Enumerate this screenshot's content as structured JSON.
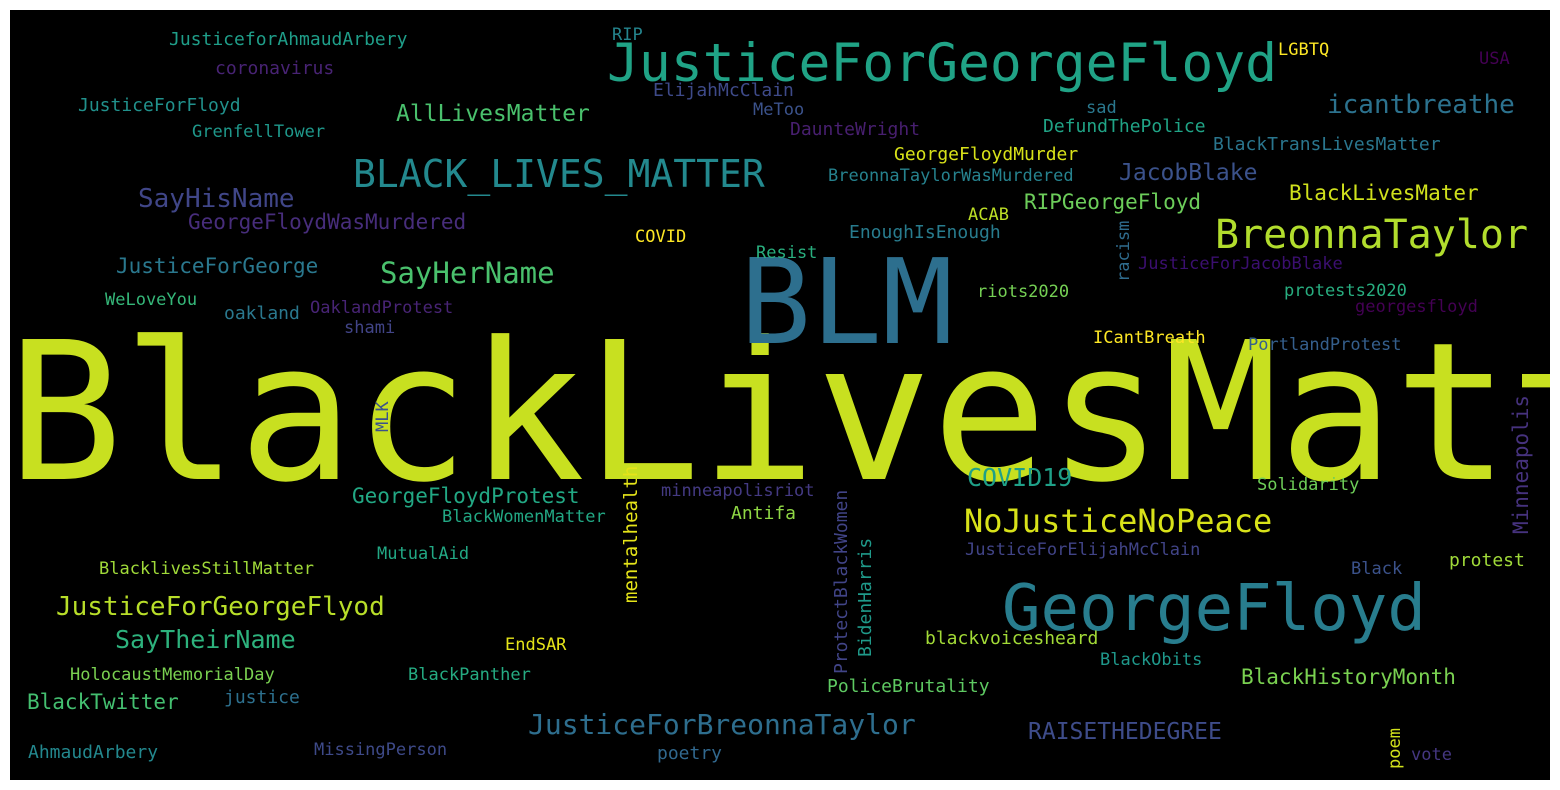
{
  "words": [
    {
      "text": "BlackLivesMatter",
      "color": "#c8e020"
    },
    {
      "text": "BLM",
      "color": "#2d6f8e"
    },
    {
      "text": "JusticeForGeorgeFloyd",
      "color": "#20a386"
    },
    {
      "text": "GeorgeFloyd",
      "color": "#287d8e"
    },
    {
      "text": "BLACK_LIVES_MATTER",
      "color": "#23898e"
    },
    {
      "text": "BreonnaTaylor",
      "color": "#b2dd2d"
    },
    {
      "text": "NoJusticeNoPeace",
      "color": "#d8e219"
    },
    {
      "text": "JusticeForBreonnaTaylor",
      "color": "#2e6e8e"
    },
    {
      "text": "icantbreathe",
      "color": "#2c728e"
    },
    {
      "text": "SayHerName",
      "color": "#4ac16d"
    },
    {
      "text": "JusticeForGeorgeFlyod",
      "color": "#b8de29"
    },
    {
      "text": "SayHisName",
      "color": "#404688"
    },
    {
      "text": "SayTheirName",
      "color": "#2db27d"
    },
    {
      "text": "COVID19",
      "color": "#1fa088"
    },
    {
      "text": "AllLivesMatter",
      "color": "#4ac16d"
    },
    {
      "text": "GeorgeFloydProtest",
      "color": "#22a884"
    },
    {
      "text": "JusticeForGeorge",
      "color": "#2a788e"
    },
    {
      "text": "BlackLivesMater",
      "color": "#d0e11c"
    },
    {
      "text": "JacobBlake",
      "color": "#3b528b"
    },
    {
      "text": "RIPGeorgeFloyd",
      "color": "#6ccd5a"
    },
    {
      "text": "RAISETHEDEGREE",
      "color": "#3e4c8a"
    },
    {
      "text": "BlackHistoryMonth",
      "color": "#7ad151"
    },
    {
      "text": "BlackTwitter",
      "color": "#44bf70"
    },
    {
      "text": "GeorgeFloydWasMurdered",
      "color": "#472d7b"
    },
    {
      "text": "Minneapolis",
      "color": "#46327e"
    },
    {
      "text": "mentalhealth",
      "color": "#e5e419"
    },
    {
      "text": "ProtectBlackWomen",
      "color": "#414487"
    },
    {
      "text": "BidenHarris",
      "color": "#1f9a8a"
    },
    {
      "text": "JusticeforAhmaudArbery",
      "color": "#1f9e89"
    },
    {
      "text": "coronavirus",
      "color": "#482374"
    },
    {
      "text": "JusticeForFloyd",
      "color": "#21918c"
    },
    {
      "text": "GrenfellTower",
      "color": "#1f988b"
    },
    {
      "text": "RIP",
      "color": "#25858e"
    },
    {
      "text": "LGBTQ",
      "color": "#fde725"
    },
    {
      "text": "USA",
      "color": "#440154"
    },
    {
      "text": "ElijahMcClain",
      "color": "#3e4a89"
    },
    {
      "text": "MeToo",
      "color": "#3b528b"
    },
    {
      "text": "sad",
      "color": "#2a788e"
    },
    {
      "text": "DefundThePolice",
      "color": "#20a486"
    },
    {
      "text": "DaunteWright",
      "color": "#481f70"
    },
    {
      "text": "BlackTransLivesMatter",
      "color": "#2a768e"
    },
    {
      "text": "GeorgeFloydMurder",
      "color": "#d8e219"
    },
    {
      "text": "BreonnaTaylorWasMurdered",
      "color": "#26828e"
    },
    {
      "text": "ACAB",
      "color": "#bddf26"
    },
    {
      "text": "EnoughIsEnough",
      "color": "#287c8e"
    },
    {
      "text": "racism",
      "color": "#2f6c8e"
    },
    {
      "text": "COVID",
      "color": "#fde725"
    },
    {
      "text": "Resist",
      "color": "#29af7f"
    },
    {
      "text": "JusticeForJacobBlake",
      "color": "#3b0f70"
    },
    {
      "text": "riots2020",
      "color": "#75d054"
    },
    {
      "text": "protests2020",
      "color": "#28ae80"
    },
    {
      "text": "georgesfloyd",
      "color": "#440154"
    },
    {
      "text": "WeLoveYou",
      "color": "#35b779"
    },
    {
      "text": "oakland",
      "color": "#2a788e"
    },
    {
      "text": "OaklandProtest",
      "color": "#482475"
    },
    {
      "text": "shami",
      "color": "#414487"
    },
    {
      "text": "ICantBreath",
      "color": "#fde725"
    },
    {
      "text": "PortlandProtest",
      "color": "#355f8d"
    },
    {
      "text": "MLK",
      "color": "#3b528b"
    },
    {
      "text": "minneapolisriot",
      "color": "#443a83"
    },
    {
      "text": "BlackWomenMatter",
      "color": "#22a884"
    },
    {
      "text": "Antifa",
      "color": "#8fd744"
    },
    {
      "text": "Solidarity",
      "color": "#6ece58"
    },
    {
      "text": "JusticeForElijahMcClain",
      "color": "#414487"
    },
    {
      "text": "protest",
      "color": "#a0da39"
    },
    {
      "text": "Black",
      "color": "#3b528b"
    },
    {
      "text": "MutualAid",
      "color": "#22a884"
    },
    {
      "text": "BlacklivesStillMatter",
      "color": "#a0da39"
    },
    {
      "text": "EndSAR",
      "color": "#e5e419"
    },
    {
      "text": "blackvoicesheard",
      "color": "#a2da37"
    },
    {
      "text": "BlackObits",
      "color": "#1f988b"
    },
    {
      "text": "HolocaustMemorialDay",
      "color": "#7ad151"
    },
    {
      "text": "BlackPanther",
      "color": "#25ab82"
    },
    {
      "text": "PoliceBrutality",
      "color": "#5ec962"
    },
    {
      "text": "justice",
      "color": "#2d708e"
    },
    {
      "text": "AhmaudArbery",
      "color": "#23888e"
    },
    {
      "text": "MissingPerson",
      "color": "#3e4a89"
    },
    {
      "text": "poetry",
      "color": "#31688e"
    },
    {
      "text": "poem",
      "color": "#d2e21b"
    },
    {
      "text": "vote",
      "color": "#453781"
    }
  ]
}
